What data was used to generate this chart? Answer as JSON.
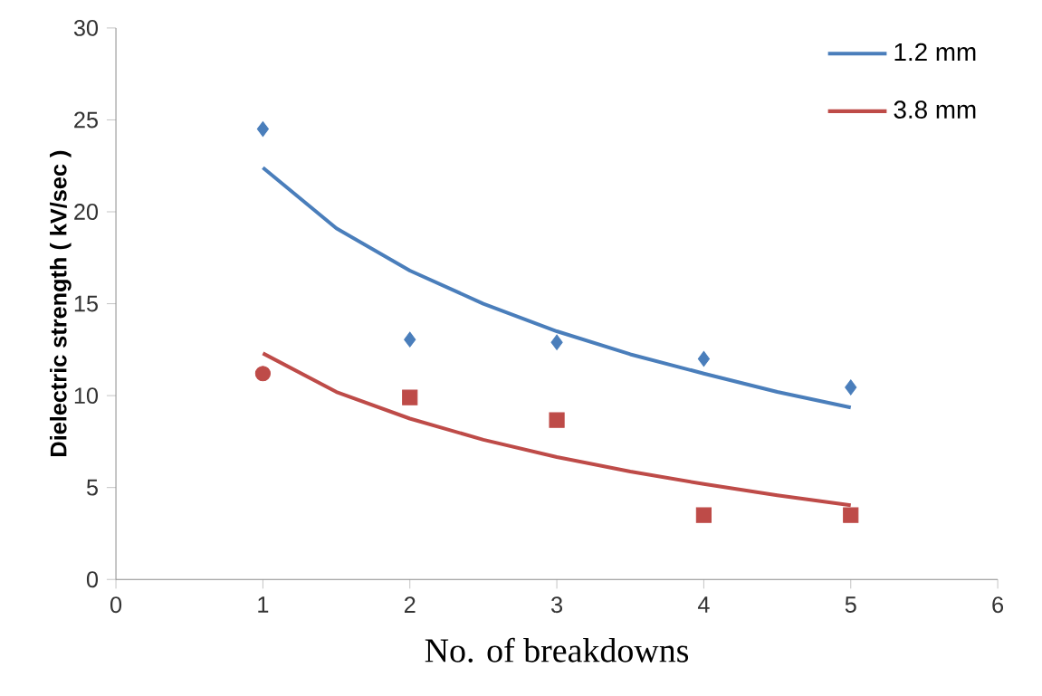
{
  "chart_data": {
    "type": "scatter",
    "xlabel": "No. of breakdowns",
    "ylabel": "Dielectric strength ( kV/sec )",
    "xlim": [
      0,
      6
    ],
    "xticks": [
      0,
      1,
      2,
      3,
      4,
      5,
      6
    ],
    "ylim": [
      0,
      30
    ],
    "yticks": [
      0,
      5,
      10,
      15,
      20,
      25,
      30
    ],
    "grid": false,
    "legend": "top right",
    "series": [
      {
        "type": "scatter",
        "marker": "diamond",
        "color": "#4a7ebb",
        "x": [
          1,
          2,
          3,
          4,
          5
        ],
        "values": [
          24.5,
          13.05,
          12.9,
          12.0,
          10.45
        ]
      },
      {
        "type": "scatter",
        "marker": "circle",
        "color": "#be4b48",
        "x": [
          1
        ],
        "values": [
          11.2
        ]
      },
      {
        "type": "scatter",
        "marker": "square",
        "color": "#be4b48",
        "x": [
          2,
          3,
          4,
          5
        ],
        "values": [
          9.9,
          8.67,
          3.5,
          3.5
        ]
      },
      {
        "type": "line",
        "name": "1.2 mm",
        "marker": "none",
        "color": "#4a7ebb",
        "x": [
          1,
          1.5,
          2,
          2.5,
          3,
          3.5,
          4,
          4.5,
          5
        ],
        "values": [
          22.4,
          19.1,
          16.8,
          15.0,
          13.5,
          12.25,
          11.2,
          10.2,
          9.35
        ]
      },
      {
        "type": "line",
        "name": "3.8 mm",
        "marker": "none",
        "color": "#be4b48",
        "x": [
          1,
          1.5,
          2,
          2.5,
          3,
          3.5,
          4,
          4.5,
          5
        ],
        "values": [
          12.3,
          10.2,
          8.75,
          7.6,
          6.66,
          5.87,
          5.19,
          4.58,
          4.04
        ]
      }
    ]
  }
}
